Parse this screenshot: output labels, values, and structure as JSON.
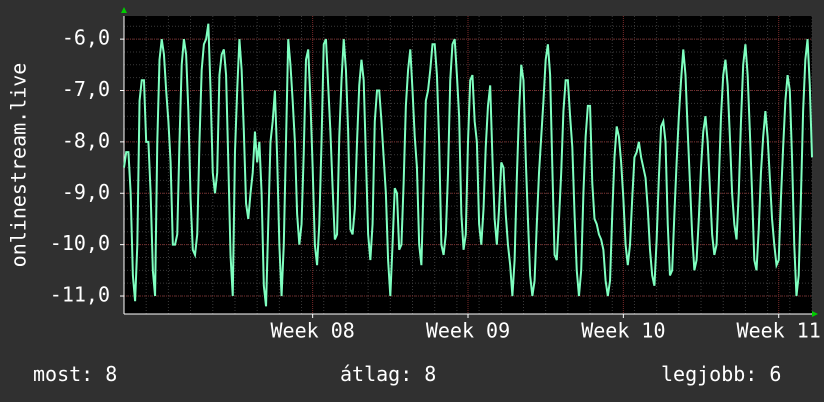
{
  "chart_data": {
    "type": "line",
    "ylabel": "onlinestream.live",
    "y_ticks": [
      "-6,0",
      "-7,0",
      "-8,0",
      "-9,0",
      "-10,0",
      "-11,0"
    ],
    "y_tick_values": [
      -6,
      -7,
      -8,
      -9,
      -10,
      -11
    ],
    "ylim": [
      -11.35,
      -5.55
    ],
    "x_ticks": [
      "Week 08",
      "Week 09",
      "Week 10",
      "Week 11"
    ],
    "x_tick_days": [
      8.5,
      15.5,
      22.5,
      29.5
    ],
    "xlim": [
      0,
      31
    ],
    "grid": true,
    "colors": {
      "background": "#303030",
      "plot_background": "#000000",
      "grid_major": "#7a2b2b",
      "grid_minor": "#3a3a3a",
      "line": "#7fffc0",
      "axis_arrow": "#00cc00"
    },
    "series": [
      {
        "name": "",
        "x": [
          0.0,
          0.1,
          0.2,
          0.3,
          0.4,
          0.5,
          0.6,
          0.7,
          0.8,
          0.9,
          1.0,
          1.1,
          1.2,
          1.3,
          1.4,
          1.5,
          1.6,
          1.7,
          1.8,
          1.9,
          2.0,
          2.1,
          2.2,
          2.3,
          2.4,
          2.5,
          2.6,
          2.7,
          2.8,
          2.9,
          3.0,
          3.1,
          3.2,
          3.3,
          3.4,
          3.5,
          3.6,
          3.7,
          3.8,
          3.9,
          4.0,
          4.1,
          4.2,
          4.3,
          4.4,
          4.5,
          4.6,
          4.7,
          4.8,
          4.9,
          5.0,
          5.1,
          5.2,
          5.3,
          5.4,
          5.5,
          5.6,
          5.7,
          5.8,
          5.9,
          6.0,
          6.1,
          6.2,
          6.3,
          6.4,
          6.5,
          6.6,
          6.7,
          6.8,
          6.9,
          7.0,
          7.1,
          7.2,
          7.3,
          7.4,
          7.5,
          7.6,
          7.7,
          7.8,
          7.9,
          8.0,
          8.1,
          8.2,
          8.3,
          8.4,
          8.5,
          8.6,
          8.7,
          8.8,
          8.9,
          9.0,
          9.1,
          9.2,
          9.3,
          9.4,
          9.5,
          9.6,
          9.7,
          9.8,
          9.9,
          10.0,
          10.1,
          10.2,
          10.3,
          10.4,
          10.5,
          10.6,
          10.7,
          10.8,
          10.9,
          11.0,
          11.1,
          11.2,
          11.3,
          11.4,
          11.5,
          11.6,
          11.7,
          11.8,
          11.9,
          12.0,
          12.1,
          12.2,
          12.3,
          12.4,
          12.5,
          12.6,
          12.7,
          12.8,
          12.9,
          13.0,
          13.1,
          13.2,
          13.3,
          13.4,
          13.5,
          13.6,
          13.7,
          13.8,
          13.9,
          14.0,
          14.1,
          14.2,
          14.3,
          14.4,
          14.5,
          14.6,
          14.7,
          14.8,
          14.9,
          15.0,
          15.1,
          15.2,
          15.3,
          15.4,
          15.5,
          15.6,
          15.7,
          15.8,
          15.9,
          16.0,
          16.1,
          16.2,
          16.3,
          16.4,
          16.5,
          16.6,
          16.7,
          16.8,
          16.9,
          17.0,
          17.1,
          17.2,
          17.3,
          17.4,
          17.5,
          17.6,
          17.7,
          17.8,
          17.9,
          18.0,
          18.1,
          18.2,
          18.3,
          18.4,
          18.5,
          18.6,
          18.7,
          18.8,
          18.9,
          19.0,
          19.1,
          19.2,
          19.3,
          19.4,
          19.5,
          19.6,
          19.7,
          19.8,
          19.9,
          20.0,
          20.1,
          20.2,
          20.3,
          20.4,
          20.5,
          20.6,
          20.7,
          20.8,
          20.9,
          21.0,
          21.1,
          21.2,
          21.3,
          21.4,
          21.5,
          21.6,
          21.7,
          21.8,
          21.9,
          22.0,
          22.1,
          22.2,
          22.3,
          22.4,
          22.5,
          22.6,
          22.7,
          22.8,
          22.9,
          23.0,
          23.1,
          23.2,
          23.3,
          23.4,
          23.5,
          23.6,
          23.7,
          23.8,
          23.9,
          24.0,
          24.1,
          24.2,
          24.3,
          24.4,
          24.5,
          24.6,
          24.7,
          24.8,
          24.9,
          25.0,
          25.1,
          25.2,
          25.3,
          25.4,
          25.5,
          25.6,
          25.7,
          25.8,
          25.9,
          26.0,
          26.1,
          26.2,
          26.3,
          26.4,
          26.5,
          26.6,
          26.7,
          26.8,
          26.9,
          27.0,
          27.1,
          27.2,
          27.3,
          27.4,
          27.5,
          27.6,
          27.7,
          27.8,
          27.9,
          28.0,
          28.1,
          28.2,
          28.3,
          28.4,
          28.5,
          28.6,
          28.7,
          28.8,
          28.9,
          29.0,
          29.1,
          29.2,
          29.3,
          29.4,
          29.5,
          29.6,
          29.7,
          29.8,
          29.9,
          30.0,
          30.1,
          30.2,
          30.3,
          30.4,
          30.5,
          30.6,
          30.7,
          30.8,
          30.9,
          31.0
        ],
        "y": [
          -8.5,
          -8.2,
          -8.2,
          -9.0,
          -10.6,
          -11.1,
          -10.0,
          -7.2,
          -6.8,
          -6.8,
          -8.0,
          -8.0,
          -9.0,
          -10.5,
          -11.0,
          -8.0,
          -6.4,
          -6.0,
          -6.3,
          -7.0,
          -7.6,
          -8.4,
          -10.0,
          -10.0,
          -9.8,
          -8.0,
          -6.5,
          -6.0,
          -6.3,
          -7.4,
          -9.1,
          -10.1,
          -10.2,
          -9.8,
          -8.0,
          -6.6,
          -6.1,
          -6.0,
          -5.7,
          -7.0,
          -8.6,
          -9.0,
          -8.6,
          -6.7,
          -6.3,
          -6.2,
          -6.7,
          -8.4,
          -10.2,
          -11.0,
          -8.2,
          -7.0,
          -6.0,
          -6.6,
          -7.8,
          -9.2,
          -9.5,
          -9.0,
          -8.6,
          -7.8,
          -8.4,
          -8.0,
          -9.0,
          -10.8,
          -11.2,
          -9.6,
          -8.0,
          -7.6,
          -7.0,
          -8.3,
          -10.0,
          -11.0,
          -10.0,
          -8.0,
          -6.0,
          -6.5,
          -7.2,
          -8.0,
          -9.4,
          -10.0,
          -9.6,
          -8.2,
          -6.4,
          -6.2,
          -7.2,
          -8.5,
          -10.0,
          -10.4,
          -9.6,
          -8.0,
          -6.1,
          -6.0,
          -6.9,
          -7.8,
          -8.9,
          -9.9,
          -9.8,
          -7.9,
          -6.8,
          -6.0,
          -6.6,
          -7.8,
          -9.7,
          -9.8,
          -9.3,
          -8.0,
          -6.9,
          -6.4,
          -6.8,
          -8.3,
          -9.8,
          -10.3,
          -9.6,
          -7.6,
          -7.0,
          -7.0,
          -7.6,
          -8.3,
          -9.0,
          -10.3,
          -11.0,
          -10.0,
          -8.9,
          -9.0,
          -10.1,
          -10.0,
          -8.8,
          -7.3,
          -6.6,
          -6.2,
          -7.0,
          -7.9,
          -8.5,
          -10.0,
          -10.4,
          -8.8,
          -7.2,
          -7.0,
          -6.6,
          -6.1,
          -6.1,
          -6.7,
          -8.0,
          -10.0,
          -10.2,
          -9.8,
          -8.6,
          -6.8,
          -6.1,
          -6.0,
          -6.7,
          -7.5,
          -9.4,
          -10.1,
          -9.8,
          -8.0,
          -6.8,
          -6.7,
          -7.6,
          -8.0,
          -9.6,
          -10.0,
          -9.3,
          -8.1,
          -7.3,
          -6.9,
          -8.3,
          -9.5,
          -10.0,
          -9.3,
          -8.4,
          -8.5,
          -9.4,
          -10.0,
          -10.4,
          -11.0,
          -10.3,
          -8.7,
          -7.4,
          -6.5,
          -6.8,
          -8.3,
          -9.5,
          -10.6,
          -11.0,
          -10.7,
          -9.6,
          -8.6,
          -7.9,
          -7.2,
          -6.4,
          -6.1,
          -6.7,
          -8.5,
          -10.2,
          -10.3,
          -9.5,
          -8.6,
          -7.4,
          -6.8,
          -6.8,
          -7.5,
          -8.1,
          -9.4,
          -10.5,
          -11.0,
          -10.5,
          -9.0,
          -7.9,
          -7.3,
          -7.3,
          -8.8,
          -9.5,
          -9.6,
          -9.8,
          -9.9,
          -10.1,
          -10.7,
          -11.0,
          -10.7,
          -9.4,
          -8.3,
          -7.7,
          -7.9,
          -8.4,
          -9.1,
          -10.0,
          -10.4,
          -10.0,
          -9.1,
          -8.3,
          -8.2,
          -8.0,
          -8.3,
          -8.5,
          -8.7,
          -9.3,
          -10.1,
          -10.6,
          -10.8,
          -9.9,
          -8.7,
          -7.7,
          -7.6,
          -8.0,
          -9.6,
          -10.6,
          -10.5,
          -9.4,
          -8.4,
          -7.5,
          -6.8,
          -6.2,
          -6.7,
          -7.8,
          -8.8,
          -9.8,
          -10.5,
          -10.3,
          -9.5,
          -8.5,
          -7.8,
          -7.5,
          -8.0,
          -8.9,
          -9.8,
          -10.2,
          -10.0,
          -8.8,
          -7.5,
          -6.7,
          -6.4,
          -6.9,
          -7.9,
          -9.0,
          -9.6,
          -9.9,
          -9.0,
          -7.6,
          -6.5,
          -6.1,
          -6.7,
          -7.8,
          -9.0,
          -10.3,
          -10.5,
          -9.7,
          -8.6,
          -7.9,
          -7.4,
          -7.9,
          -8.7,
          -9.5,
          -10.0,
          -10.4,
          -10.3,
          -9.1,
          -8.1,
          -7.2,
          -6.7,
          -7.0,
          -8.3,
          -10.0,
          -11.0,
          -10.6,
          -9.1,
          -7.4,
          -6.4,
          -6.0,
          -6.9,
          -8.3
        ]
      }
    ]
  },
  "legend": {
    "current": "most: 8",
    "average": "átlag: 8",
    "max": "legjobb: 6"
  }
}
